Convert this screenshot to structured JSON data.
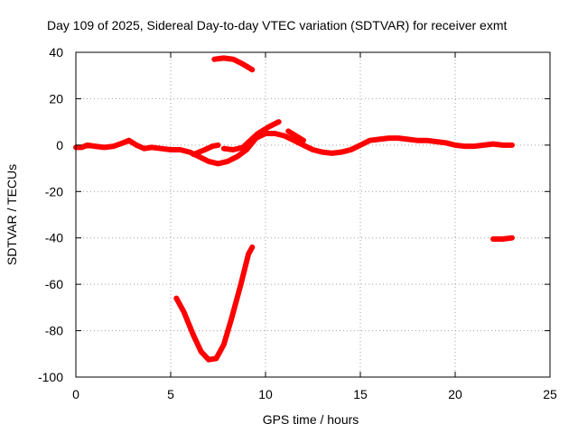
{
  "chart_data": {
    "type": "scatter",
    "title": "Day 109 of 2025, Sidereal Day-to-day VTEC variation (SDTVAR) for receiver exmt",
    "xlabel": "GPS time / hours",
    "ylabel": "SDTVAR / TECUs",
    "xlim": [
      0,
      25
    ],
    "ylim": [
      -100,
      40
    ],
    "xticks": [
      0,
      5,
      10,
      15,
      20,
      25
    ],
    "yticks": [
      -100,
      -80,
      -60,
      -40,
      -20,
      0,
      20,
      40
    ],
    "xtick_labels": [
      "0",
      "5",
      "10",
      "15",
      "20",
      "25"
    ],
    "ytick_labels": [
      "-100",
      "-80",
      "-60",
      "-40",
      "-20",
      "0",
      "20",
      "40"
    ],
    "grid": true,
    "color": "#ff0000",
    "series": [
      {
        "name": "main-band",
        "points": [
          [
            0,
            -1
          ],
          [
            0.3,
            -1
          ],
          [
            0.6,
            0
          ],
          [
            1,
            -0.5
          ],
          [
            1.5,
            -1
          ],
          [
            2,
            -0.5
          ],
          [
            2.5,
            1
          ],
          [
            2.8,
            2
          ],
          [
            3.2,
            0
          ],
          [
            3.6,
            -1.5
          ],
          [
            4,
            -1
          ],
          [
            4.5,
            -1.5
          ],
          [
            5,
            -2
          ],
          [
            5.5,
            -2
          ],
          [
            6,
            -3
          ],
          [
            6.5,
            -5
          ],
          [
            7,
            -7
          ],
          [
            7.5,
            -8
          ],
          [
            8,
            -7
          ],
          [
            8.5,
            -5
          ],
          [
            9,
            -2
          ],
          [
            9.5,
            3
          ],
          [
            10,
            5
          ],
          [
            10.5,
            5
          ],
          [
            11,
            4
          ],
          [
            11.5,
            2
          ],
          [
            12,
            0
          ],
          [
            12.5,
            -2
          ],
          [
            13,
            -3
          ],
          [
            13.5,
            -3.5
          ],
          [
            14,
            -3
          ],
          [
            14.5,
            -2
          ],
          [
            15,
            0
          ],
          [
            15.5,
            2
          ],
          [
            16,
            2.5
          ],
          [
            16.5,
            3
          ],
          [
            17,
            3
          ],
          [
            17.5,
            2.5
          ],
          [
            18,
            2
          ],
          [
            18.5,
            2
          ],
          [
            19,
            1.5
          ],
          [
            19.5,
            1
          ],
          [
            20,
            0
          ],
          [
            20.5,
            -0.5
          ],
          [
            21,
            -0.5
          ],
          [
            21.5,
            0
          ],
          [
            22,
            0.5
          ],
          [
            22.5,
            0
          ],
          [
            23,
            0
          ]
        ]
      },
      {
        "name": "dip-segment",
        "points": [
          [
            6.2,
            -4
          ],
          [
            6.8,
            -2
          ],
          [
            7.2,
            -0.5
          ],
          [
            7.5,
            0
          ]
        ]
      },
      {
        "name": "secondary-band",
        "points": [
          [
            7.8,
            -1.5
          ],
          [
            8.3,
            -2
          ],
          [
            8.8,
            -1
          ],
          [
            9.2,
            2
          ],
          [
            9.6,
            5
          ],
          [
            10.2,
            8
          ],
          [
            10.7,
            10
          ]
        ]
      },
      {
        "name": "bump-segment",
        "points": [
          [
            11.2,
            6
          ],
          [
            11.6,
            4
          ],
          [
            12,
            2
          ]
        ]
      },
      {
        "name": "upper-segment",
        "points": [
          [
            7.3,
            37
          ],
          [
            7.8,
            37.5
          ],
          [
            8.3,
            37
          ],
          [
            8.8,
            35
          ],
          [
            9.3,
            32.5
          ]
        ]
      },
      {
        "name": "deep-trough",
        "points": [
          [
            5.3,
            -66
          ],
          [
            5.7,
            -72
          ],
          [
            6.2,
            -82
          ],
          [
            6.6,
            -89
          ],
          [
            7,
            -92.5
          ],
          [
            7.4,
            -92
          ],
          [
            7.8,
            -86
          ],
          [
            8.2,
            -75
          ],
          [
            8.7,
            -60
          ],
          [
            9.1,
            -47
          ],
          [
            9.3,
            -44
          ]
        ]
      },
      {
        "name": "late-segment",
        "points": [
          [
            22,
            -40.5
          ],
          [
            22.5,
            -40.5
          ],
          [
            23,
            -40
          ]
        ]
      }
    ]
  }
}
